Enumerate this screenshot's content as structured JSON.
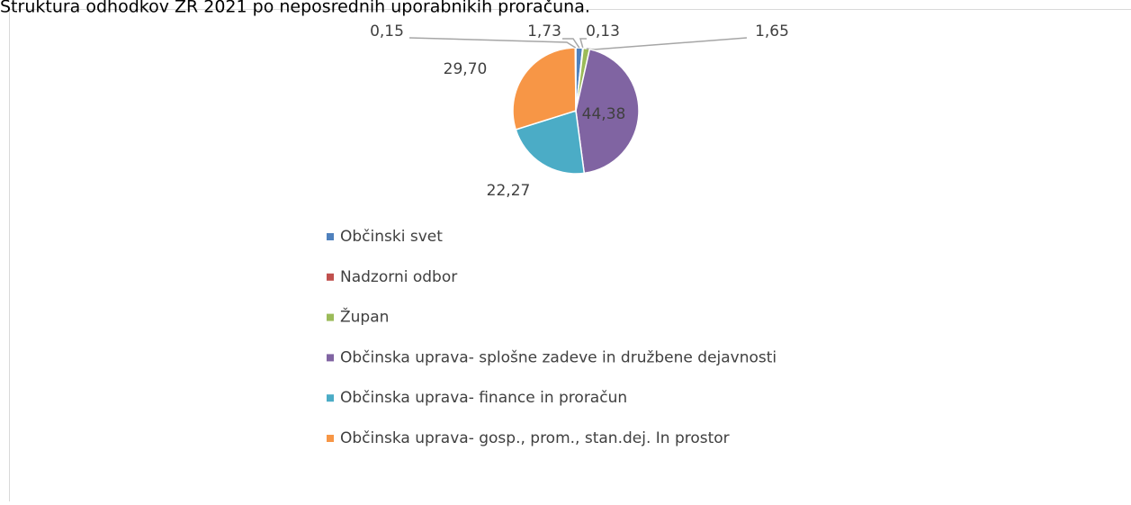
{
  "chart_data": {
    "type": "pie",
    "title": "Struktura odhodkov ZR 2021 po neposrednih uporabnikih proračuna.",
    "categories": [
      "Občinski svet",
      "Nadzorni odbor",
      "Župan",
      "Občinska uprava- splošne zadeve in družbene dejavnosti",
      "Občinska uprava- finance in proračun",
      "Občinska uprava- gosp., prom., stan.dej. In prostor",
      null
    ],
    "values": [
      1.73,
      0.13,
      1.65,
      44.38,
      22.27,
      29.7,
      0.15
    ],
    "value_labels": [
      "1,73",
      "0,13",
      "1,65",
      "44,38",
      "22,27",
      "29,70",
      "0,15"
    ],
    "colors": [
      "#4f81bd",
      "#c0504d",
      "#9bbb59",
      "#8064a2",
      "#4bacc6",
      "#f79646",
      "#2c4d75"
    ],
    "legend": "bottom"
  }
}
